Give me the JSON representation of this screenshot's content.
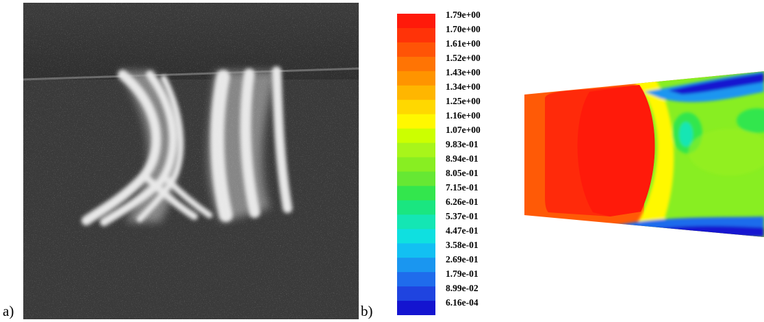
{
  "panels": {
    "a_label": "a)",
    "b_label": "b)"
  },
  "colorbar": {
    "labels": [
      "1.79e+00",
      "1.70e+00",
      "1.61e+00",
      "1.52e+00",
      "1.43e+00",
      "1.34e+00",
      "1.25e+00",
      "1.16e+00",
      "1.07e+00",
      "9.83e-01",
      "8.94e-01",
      "8.05e-01",
      "7.15e-01",
      "6.26e-01",
      "5.37e-01",
      "4.47e-01",
      "3.58e-01",
      "2.69e-01",
      "1.79e-01",
      "8.99e-02",
      "6.16e-04"
    ],
    "colors": [
      "#ff1a0a",
      "#ff3308",
      "#ff5406",
      "#ff7404",
      "#ff9400",
      "#ffb600",
      "#ffd800",
      "#fff800",
      "#ccff00",
      "#a8f51a",
      "#88ee22",
      "#66e833",
      "#33e64d",
      "#1ae680",
      "#14e6b4",
      "#0fe0e0",
      "#12c0f2",
      "#1a96f0",
      "#1f6cec",
      "#1f44e0",
      "#1414d0"
    ]
  }
}
